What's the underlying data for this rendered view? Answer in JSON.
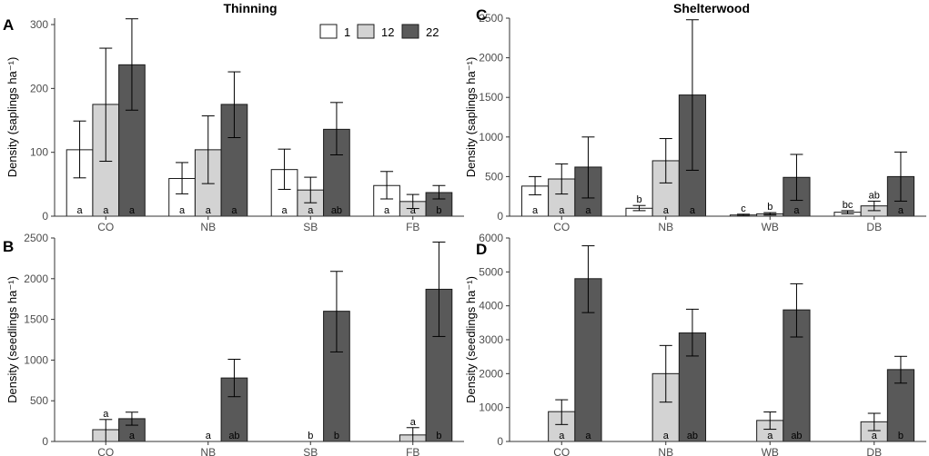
{
  "colors": {
    "1": "#ffffff",
    "12": "#d3d3d3",
    "22": "#595959",
    "stroke": "#1a1a1a"
  },
  "legend": {
    "entries": [
      "1",
      "12",
      "22"
    ]
  },
  "chart_data": [
    {
      "id": "A",
      "type": "bar",
      "title": "Thinning",
      "ylabel": "Density (saplings ha⁻¹)",
      "ylim": [
        0,
        310
      ],
      "yticks": [
        0,
        100,
        200,
        300
      ],
      "categories": [
        "CO",
        "NB",
        "SB",
        "FB"
      ],
      "series": [
        {
          "name": "1",
          "values": [
            104,
            59,
            73,
            48
          ],
          "err_low": [
            60,
            35,
            42,
            27
          ],
          "err_high": [
            149,
            84,
            105,
            70
          ],
          "letters": [
            "a",
            "a",
            "a",
            "a"
          ]
        },
        {
          "name": "12",
          "values": [
            175,
            104,
            41,
            23
          ],
          "err_low": [
            86,
            51,
            21,
            12
          ],
          "err_high": [
            263,
            157,
            61,
            34
          ],
          "letters": [
            "a",
            "a",
            "a",
            "a"
          ]
        },
        {
          "name": "22",
          "values": [
            237,
            175,
            136,
            37
          ],
          "err_low": [
            166,
            123,
            96,
            27
          ],
          "err_high": [
            309,
            226,
            178,
            48
          ],
          "letters": [
            "a",
            "a",
            "ab",
            "b"
          ]
        }
      ]
    },
    {
      "id": "C",
      "type": "bar",
      "title": "Shelterwood",
      "ylabel": "Density (saplings ha⁻¹)",
      "ylim": [
        0,
        2500
      ],
      "yticks": [
        0,
        500,
        1000,
        1500,
        2000,
        2500
      ],
      "categories": [
        "CO",
        "NB",
        "WB",
        "DB"
      ],
      "series": [
        {
          "name": "1",
          "values": [
            380,
            100,
            15,
            50
          ],
          "err_low": [
            270,
            70,
            5,
            30
          ],
          "err_high": [
            500,
            135,
            25,
            70
          ],
          "letters": [
            "a",
            "b",
            "c",
            "bc"
          ]
        },
        {
          "name": "12",
          "values": [
            470,
            700,
            30,
            130
          ],
          "err_low": [
            280,
            420,
            15,
            70
          ],
          "err_high": [
            660,
            980,
            45,
            190
          ],
          "letters": [
            "a",
            "a",
            "b",
            "ab"
          ]
        },
        {
          "name": "22",
          "values": [
            620,
            1530,
            490,
            500
          ],
          "err_low": [
            230,
            580,
            200,
            190
          ],
          "err_high": [
            1000,
            2480,
            780,
            810
          ],
          "letters": [
            "a",
            "a",
            "a",
            "a"
          ]
        }
      ]
    },
    {
      "id": "B",
      "type": "bar",
      "title": "",
      "ylabel": "Density (seedlings ha⁻¹)",
      "ylim": [
        0,
        2500
      ],
      "yticks": [
        0,
        500,
        1000,
        1500,
        2000,
        2500
      ],
      "categories": [
        "CO",
        "NB",
        "SB",
        "FB"
      ],
      "series": [
        {
          "name": "1",
          "values": [
            0,
            0,
            0,
            0
          ],
          "err_low": [
            0,
            0,
            0,
            0
          ],
          "err_high": [
            0,
            0,
            0,
            0
          ],
          "letters": [
            "",
            "",
            "",
            ""
          ]
        },
        {
          "name": "12",
          "values": [
            145,
            0,
            0,
            80
          ],
          "err_low": [
            0,
            0,
            0,
            0
          ],
          "err_high": [
            270,
            0,
            0,
            170
          ],
          "letters": [
            "a",
            "a",
            "b",
            "a"
          ]
        },
        {
          "name": "22",
          "values": [
            280,
            780,
            1600,
            1870
          ],
          "err_low": [
            200,
            550,
            1100,
            1290
          ],
          "err_high": [
            360,
            1010,
            2090,
            2450
          ],
          "letters": [
            "a",
            "ab",
            "b",
            "b"
          ]
        }
      ]
    },
    {
      "id": "D",
      "type": "bar",
      "title": "",
      "ylabel": "Density (seedlings ha⁻¹)",
      "ylim": [
        0,
        6000
      ],
      "yticks": [
        0,
        1000,
        2000,
        3000,
        4000,
        5000,
        6000
      ],
      "categories": [
        "CO",
        "NB",
        "WB",
        "DB"
      ],
      "series": [
        {
          "name": "1",
          "values": [
            0,
            0,
            0,
            0
          ],
          "err_low": [
            0,
            0,
            0,
            0
          ],
          "err_high": [
            0,
            0,
            0,
            0
          ],
          "letters": [
            "",
            "",
            "",
            ""
          ]
        },
        {
          "name": "12",
          "values": [
            880,
            2000,
            620,
            580
          ],
          "err_low": [
            500,
            1160,
            360,
            320
          ],
          "err_high": [
            1230,
            2830,
            870,
            830
          ],
          "letters": [
            "a",
            "a",
            "a",
            "a"
          ]
        },
        {
          "name": "22",
          "values": [
            4800,
            3200,
            3880,
            2120
          ],
          "err_low": [
            3800,
            2520,
            3080,
            1720
          ],
          "err_high": [
            5770,
            3900,
            4650,
            2510
          ],
          "letters": [
            "a",
            "ab",
            "ab",
            "b"
          ]
        }
      ]
    }
  ]
}
